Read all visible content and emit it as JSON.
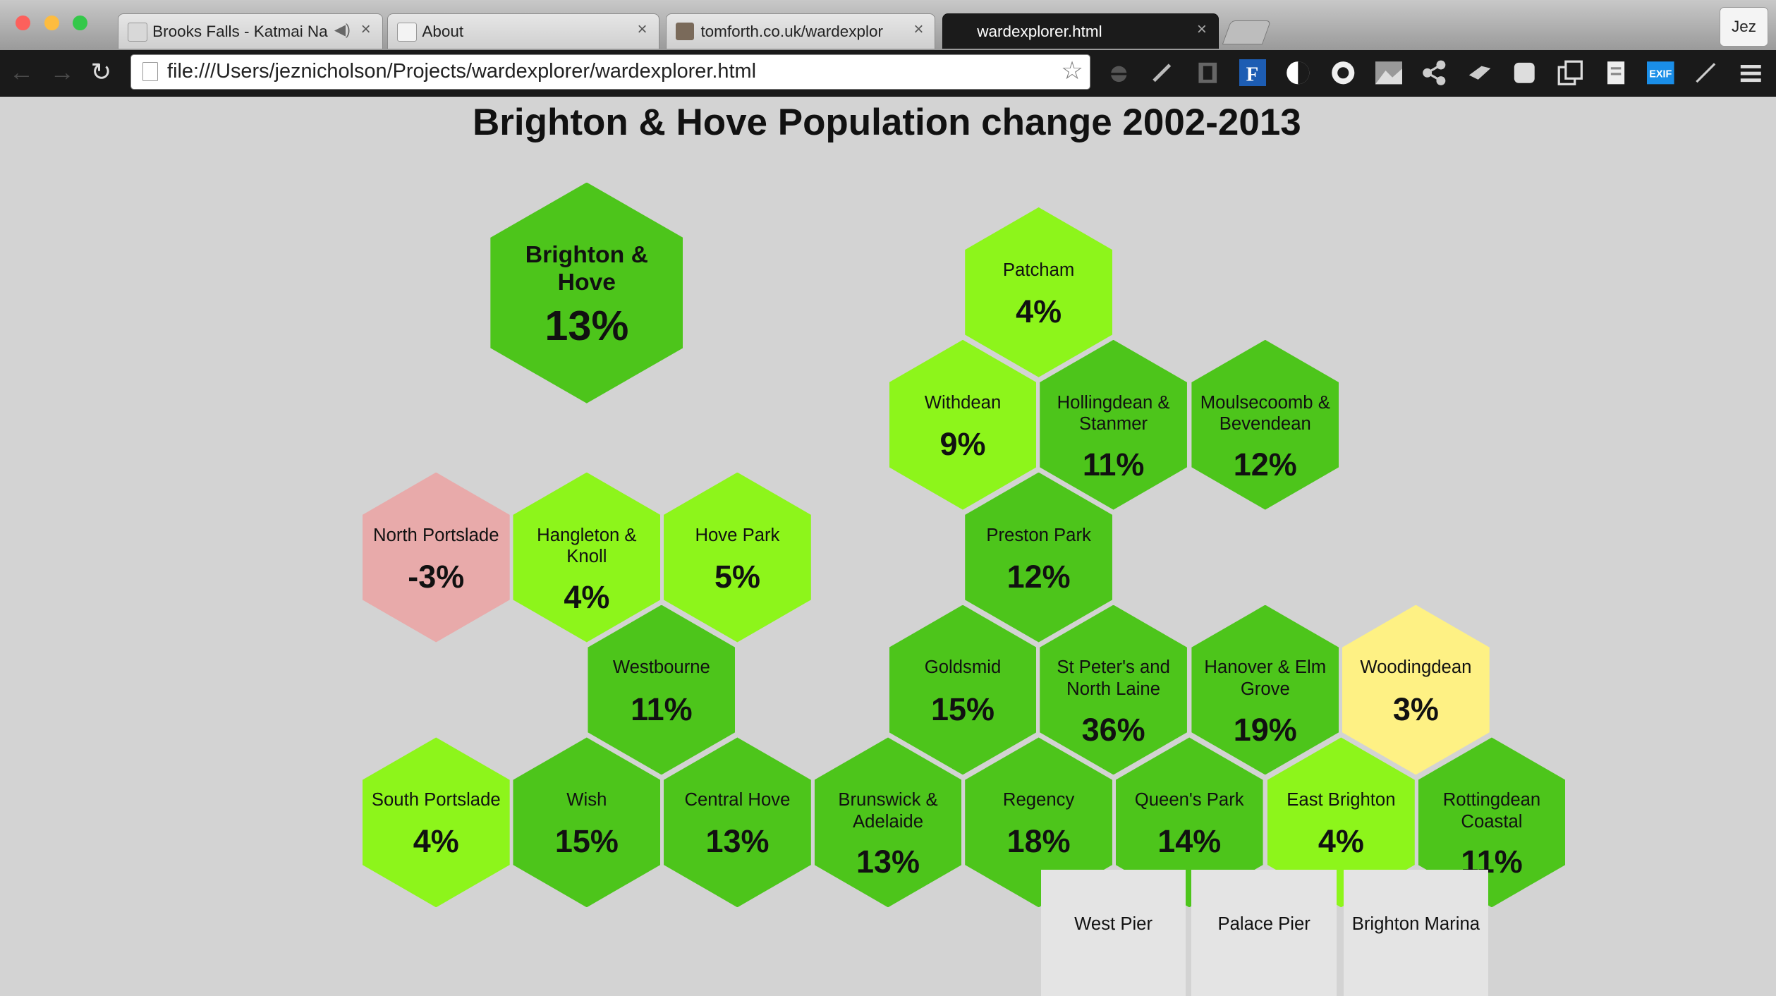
{
  "browser": {
    "tabs": [
      {
        "label": "Brooks Falls - Katmai Na",
        "has_audio": true,
        "active": false
      },
      {
        "label": "About",
        "has_audio": false,
        "active": false
      },
      {
        "label": "tomforth.co.uk/wardexplor",
        "has_audio": false,
        "active": false
      },
      {
        "label": "wardexplorer.html",
        "has_audio": false,
        "active": true
      }
    ],
    "tab_close_glyph": "×",
    "profile_name": "Jez",
    "url": "file:///Users/jeznicholson/Projects/wardexplorer/wardexplorer.html",
    "extension_icons": [
      "bug-icon",
      "pen-icon",
      "film-icon",
      "f-icon",
      "contrast-icon",
      "circle-icon",
      "landscape-icon",
      "share-icon",
      "tag-icon",
      "note-icon",
      "copy-icon",
      "doc-icon",
      "exif-icon",
      "pencil-icon"
    ]
  },
  "page": {
    "title": "Brighton & Hove Population change 2002-2013"
  },
  "colors": {
    "dark_green": "#4dc51b",
    "light_green": "#8df51b",
    "pink": "#e8aaaa",
    "yellow": "#fef184",
    "pier_grey": "#e4e4e4",
    "background": "#d3d3d3"
  },
  "summary": {
    "name": "Brighton & Hove",
    "value": "13%"
  },
  "wards": [
    {
      "name": "Patcham",
      "value": "4%",
      "color": "light_green"
    },
    {
      "name": "Withdean",
      "value": "9%",
      "color": "light_green"
    },
    {
      "name": "Hollingdean & Stanmer",
      "value": "11%",
      "color": "dark_green"
    },
    {
      "name": "Moulsecoomb & Bevendean",
      "value": "12%",
      "color": "dark_green"
    },
    {
      "name": "North Portslade",
      "value": "-3%",
      "color": "pink"
    },
    {
      "name": "Hangleton & Knoll",
      "value": "4%",
      "color": "light_green"
    },
    {
      "name": "Hove Park",
      "value": "5%",
      "color": "light_green"
    },
    {
      "name": "Preston Park",
      "value": "12%",
      "color": "dark_green"
    },
    {
      "name": "Westbourne",
      "value": "11%",
      "color": "dark_green"
    },
    {
      "name": "Goldsmid",
      "value": "15%",
      "color": "dark_green"
    },
    {
      "name": "St Peter's and North Laine",
      "value": "36%",
      "color": "dark_green"
    },
    {
      "name": "Hanover & Elm Grove",
      "value": "19%",
      "color": "dark_green"
    },
    {
      "name": "Woodingdean",
      "value": "3%",
      "color": "yellow"
    },
    {
      "name": "South Portslade",
      "value": "4%",
      "color": "light_green"
    },
    {
      "name": "Wish",
      "value": "15%",
      "color": "dark_green"
    },
    {
      "name": "Central Hove",
      "value": "13%",
      "color": "dark_green"
    },
    {
      "name": "Brunswick & Adelaide",
      "value": "13%",
      "color": "dark_green"
    },
    {
      "name": "Regency",
      "value": "18%",
      "color": "dark_green"
    },
    {
      "name": "Queen's Park",
      "value": "14%",
      "color": "dark_green"
    },
    {
      "name": "East Brighton",
      "value": "4%",
      "color": "light_green"
    },
    {
      "name": "Rottingdean Coastal",
      "value": "11%",
      "color": "dark_green"
    }
  ],
  "piers": [
    "West Pier",
    "Palace Pier",
    "Brighton Marina"
  ]
}
